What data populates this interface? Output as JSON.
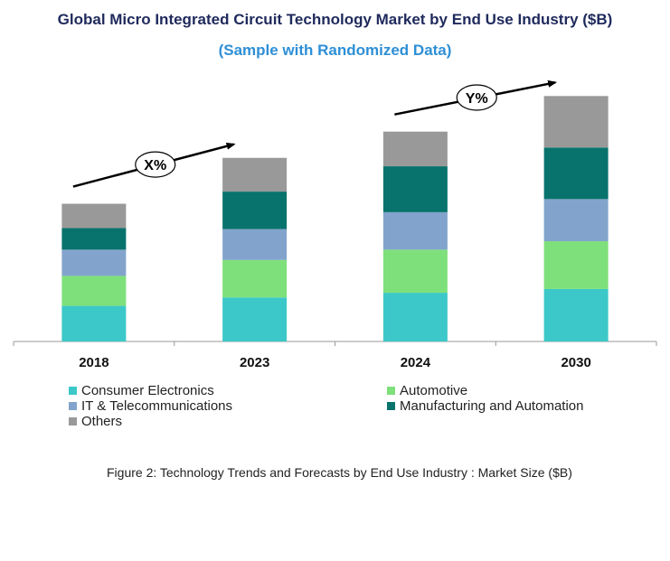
{
  "title": "Global Micro Integrated Circuit Technology Market by End Use Industry ($B)",
  "subtitle": "(Sample with Randomized Data)",
  "caption": "Figure 2: Technology  Trends  and Forecasts by  End Use Industry   : Market Size ($B)",
  "annotations": [
    {
      "label": "X%",
      "from": "2018",
      "to": "2023"
    },
    {
      "label": "Y%",
      "from": "2024",
      "to": "2030"
    }
  ],
  "chart_data": {
    "type": "bar",
    "stacked": true,
    "title": "Global Micro Integrated Circuit Technology Market by End Use Industry ($B)",
    "categories": [
      "2018",
      "2023",
      "2024",
      "2030"
    ],
    "series": [
      {
        "name": "Consumer Electronics",
        "color": "#3cc8c8",
        "values": [
          38,
          47,
          52,
          56
        ]
      },
      {
        "name": "Automotive",
        "color": "#7ee07a",
        "values": [
          32,
          40,
          46,
          51
        ]
      },
      {
        "name": "IT & Telecommunications",
        "color": "#82a4cc",
        "values": [
          28,
          33,
          40,
          45
        ]
      },
      {
        "name": "Manufacturing and Automation",
        "color": "#08736c",
        "values": [
          23,
          40,
          49,
          55
        ]
      },
      {
        "name": "Others",
        "color": "#999999",
        "values": [
          26,
          36,
          37,
          55
        ]
      }
    ],
    "ylim": [
      0,
      270
    ],
    "xlabel": "",
    "ylabel": "",
    "legend": "bottom"
  }
}
